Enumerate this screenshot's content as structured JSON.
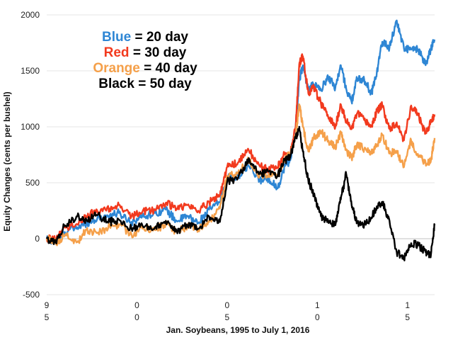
{
  "chart_data": {
    "type": "line",
    "xlabel": "Jan. Soybeans, 1995 to July 1, 2016",
    "ylabel": "Equity  Changes (cents per bushel)",
    "xlim": [
      1995.0,
      2016.5
    ],
    "ylim": [
      -500,
      2000
    ],
    "yticks": [
      -500,
      0,
      500,
      1000,
      1500,
      2000
    ],
    "xticks": [
      {
        "x": 1995,
        "top": "9",
        "bottom": "5"
      },
      {
        "x": 2000,
        "top": "0",
        "bottom": "0"
      },
      {
        "x": 2005,
        "top": "0",
        "bottom": "5"
      },
      {
        "x": 2010,
        "top": "1",
        "bottom": "0"
      },
      {
        "x": 2015,
        "top": "1",
        "bottom": "5"
      }
    ],
    "grid": true,
    "legend_placement": "top-left",
    "legend": [
      {
        "name": "Blue",
        "suffix": " = 20 day",
        "color": "#2E86D4"
      },
      {
        "name": "Red",
        "suffix": " = 30 day",
        "color": "#F23A1E"
      },
      {
        "name": "Orange",
        "suffix": " = 40 day",
        "color": "#F5A04A"
      },
      {
        "name": "Black",
        "suffix": " = 50 day",
        "color": "#000000"
      }
    ],
    "series": [
      {
        "color": "#2E86D4",
        "x": [
          1995.0,
          1995.5,
          1996.0,
          1996.7,
          1997.2,
          1997.8,
          1998.5,
          1999.0,
          1999.7,
          2000.3,
          2001.0,
          2001.6,
          2002.2,
          2002.8,
          2003.4,
          2004.0,
          2004.6,
          2005.0,
          2005.6,
          2006.2,
          2006.8,
          2007.3,
          2007.8,
          2008.2,
          2008.5,
          2008.8,
          2009.0,
          2009.2,
          2009.5,
          2009.8,
          2010.2,
          2010.6,
          2011.0,
          2011.3,
          2011.6,
          2011.9,
          2012.2,
          2012.6,
          2013.0,
          2013.3,
          2013.6,
          2014.0,
          2014.4,
          2014.8,
          2015.2,
          2015.6,
          2016.0,
          2016.3,
          2016.5
        ],
        "y": [
          0,
          -30,
          60,
          100,
          140,
          180,
          210,
          230,
          150,
          200,
          230,
          260,
          160,
          200,
          140,
          260,
          330,
          550,
          560,
          650,
          520,
          540,
          450,
          650,
          700,
          1000,
          1420,
          1550,
          1330,
          1380,
          1330,
          1450,
          1350,
          1550,
          1340,
          1220,
          1430,
          1420,
          1300,
          1490,
          1760,
          1710,
          1950,
          1700,
          1690,
          1690,
          1550,
          1700,
          1780
        ]
      },
      {
        "color": "#F23A1E",
        "x": [
          1995.0,
          1995.5,
          1996.0,
          1996.7,
          1997.2,
          1997.8,
          1998.5,
          1999.0,
          1999.7,
          2000.3,
          2001.0,
          2001.6,
          2002.2,
          2002.8,
          2003.4,
          2004.0,
          2004.6,
          2005.0,
          2005.6,
          2006.2,
          2006.8,
          2007.3,
          2007.8,
          2008.2,
          2008.5,
          2008.8,
          2009.0,
          2009.2,
          2009.5,
          2009.8,
          2010.2,
          2010.6,
          2011.0,
          2011.3,
          2011.6,
          2011.9,
          2012.2,
          2012.6,
          2013.0,
          2013.3,
          2013.6,
          2014.0,
          2014.4,
          2014.8,
          2015.2,
          2015.6,
          2016.0,
          2016.3,
          2016.5
        ],
        "y": [
          0,
          -10,
          100,
          130,
          200,
          250,
          270,
          300,
          200,
          240,
          260,
          320,
          270,
          300,
          250,
          330,
          390,
          640,
          680,
          790,
          650,
          620,
          640,
          760,
          760,
          1000,
          1560,
          1630,
          1300,
          1350,
          1210,
          1090,
          1000,
          1200,
          1050,
          980,
          1120,
          1060,
          1000,
          1140,
          1190,
          980,
          1040,
          880,
          1190,
          1100,
          940,
          1040,
          1110
        ]
      },
      {
        "color": "#F5A04A",
        "x": [
          1995.0,
          1995.5,
          1996.0,
          1996.7,
          1997.2,
          1997.8,
          1998.5,
          1999.0,
          1999.7,
          2000.3,
          2001.0,
          2001.6,
          2002.2,
          2002.8,
          2003.4,
          2004.0,
          2004.6,
          2005.0,
          2005.6,
          2006.2,
          2006.8,
          2007.3,
          2007.8,
          2008.2,
          2008.5,
          2008.8,
          2009.0,
          2009.2,
          2009.5,
          2009.8,
          2010.2,
          2010.6,
          2011.0,
          2011.3,
          2011.6,
          2011.9,
          2012.2,
          2012.6,
          2013.0,
          2013.3,
          2013.6,
          2014.0,
          2014.4,
          2014.8,
          2015.2,
          2015.6,
          2016.0,
          2016.3,
          2016.5
        ],
        "y": [
          0,
          -40,
          30,
          -30,
          80,
          50,
          110,
          120,
          40,
          90,
          80,
          130,
          60,
          110,
          80,
          150,
          270,
          560,
          580,
          700,
          570,
          580,
          560,
          720,
          750,
          920,
          1200,
          1000,
          780,
          900,
          960,
          870,
          820,
          940,
          790,
          720,
          850,
          800,
          760,
          840,
          930,
          760,
          780,
          640,
          880,
          730,
          680,
          700,
          900
        ]
      },
      {
        "color": "#000000",
        "x": [
          1995.0,
          1995.5,
          1996.0,
          1996.7,
          1997.2,
          1997.8,
          1998.5,
          1999.0,
          1999.7,
          2000.3,
          2001.0,
          2001.6,
          2002.2,
          2002.8,
          2003.4,
          2004.0,
          2004.6,
          2005.0,
          2005.6,
          2006.2,
          2006.8,
          2007.3,
          2007.8,
          2008.2,
          2008.5,
          2008.8,
          2009.0,
          2009.2,
          2009.5,
          2009.8,
          2010.2,
          2010.6,
          2011.0,
          2011.3,
          2011.6,
          2011.9,
          2012.2,
          2012.6,
          2013.0,
          2013.3,
          2013.6,
          2014.0,
          2014.4,
          2014.8,
          2015.2,
          2015.6,
          2016.0,
          2016.3,
          2016.5
        ],
        "y": [
          0,
          -30,
          120,
          200,
          170,
          210,
          150,
          170,
          90,
          120,
          100,
          160,
          70,
          120,
          90,
          200,
          150,
          510,
          540,
          720,
          580,
          600,
          560,
          700,
          730,
          900,
          1000,
          780,
          520,
          400,
          200,
          160,
          120,
          350,
          580,
          300,
          150,
          130,
          190,
          290,
          330,
          160,
          -120,
          -180,
          -40,
          -60,
          -120,
          -140,
          120
        ]
      }
    ]
  }
}
